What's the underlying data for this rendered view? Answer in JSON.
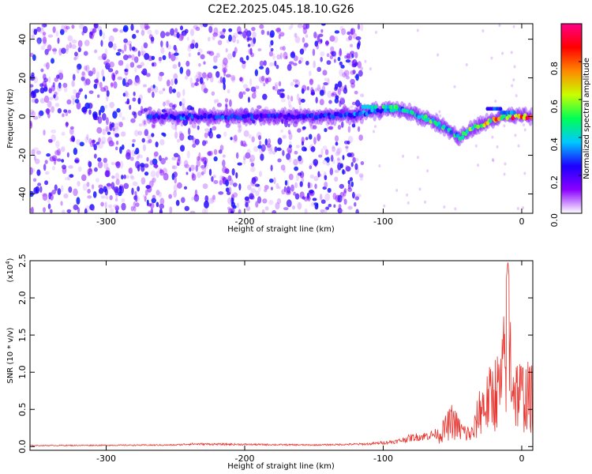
{
  "title": "C2E2.2025.045.18.10.G26",
  "colors": {
    "snr_line": "#e8352f",
    "cbar_stops": [
      "#ffffff",
      "#8a00ff",
      "#1c00ff",
      "#00c8ff",
      "#00ff55",
      "#c8ff00",
      "#ff8800",
      "#ff0000",
      "#ff0088"
    ]
  },
  "chart_data": [
    {
      "type": "heatmap",
      "xlabel": "Height of straight line (km)",
      "ylabel": "Frequency (Hz)",
      "xlim": [
        -355,
        8
      ],
      "ylim": [
        -50,
        48
      ],
      "x_ticks": [
        -300,
        -200,
        -100,
        0
      ],
      "x_tick_labels": [
        "-300",
        "-200",
        "-100",
        "0"
      ],
      "y_ticks": [
        -40,
        -20,
        0,
        20,
        40
      ],
      "y_tick_labels": [
        "-40",
        "-20",
        "0",
        "20",
        "40"
      ],
      "colorbar": {
        "label": "Normalized spectral amplitude",
        "range": [
          0,
          1
        ],
        "ticks": [
          0.0,
          0.2,
          0.4,
          0.6,
          0.8
        ],
        "tick_labels": [
          "0.0",
          "0.2",
          "0.4",
          "0.6",
          "0.8"
        ]
      },
      "ridge": {
        "points": [
          {
            "x": -270,
            "freq": 0,
            "amp": 0.3
          },
          {
            "x": -245,
            "freq": 0,
            "amp": 0.35
          },
          {
            "x": -230,
            "freq": 0,
            "amp": 0.35
          },
          {
            "x": -200,
            "freq": 0,
            "amp": 0.3
          },
          {
            "x": -175,
            "freq": 0,
            "amp": 0.3
          },
          {
            "x": -150,
            "freq": 0,
            "amp": 0.3
          },
          {
            "x": -120,
            "freq": 1,
            "amp": 0.35
          },
          {
            "x": -105,
            "freq": 3,
            "amp": 0.4
          },
          {
            "x": -90,
            "freq": 4,
            "amp": 0.45
          },
          {
            "x": -80,
            "freq": 2,
            "amp": 0.5
          },
          {
            "x": -65,
            "freq": -2,
            "amp": 0.55
          },
          {
            "x": -55,
            "freq": -6,
            "amp": 0.55
          },
          {
            "x": -45,
            "freq": -11,
            "amp": 0.5
          },
          {
            "x": -35,
            "freq": -6,
            "amp": 0.6
          },
          {
            "x": -25,
            "freq": -3,
            "amp": 0.75
          },
          {
            "x": -15,
            "freq": 0,
            "amp": 0.85
          },
          {
            "x": -5,
            "freq": 0,
            "amp": 0.95
          },
          {
            "x": 8,
            "freq": 0,
            "amp": 1.0
          }
        ],
        "secondary": [
          {
            "x": -110,
            "freq": 5,
            "amp": 0.45
          },
          {
            "x": -95,
            "freq": 5,
            "amp": 0.5
          },
          {
            "x": -20,
            "freq": 4,
            "amp": 0.3
          },
          {
            "x": -10,
            "freq": 2,
            "amp": 0.35
          }
        ]
      },
      "noise_region": {
        "x_min": -355,
        "x_max": -115,
        "amp_max": 0.22
      }
    },
    {
      "type": "line",
      "xlabel": "Height of straight line (km)",
      "ylabel": "SNR (10 * v/v)",
      "y_multiplier": "(x10",
      "y_multiplier_exp": "4",
      "y_multiplier_close": ")",
      "xlim": [
        -355,
        8
      ],
      "ylim": [
        -0.05,
        2.5
      ],
      "x_ticks": [
        -300,
        -200,
        -100,
        0
      ],
      "x_tick_labels": [
        "-300",
        "-200",
        "-100",
        "0"
      ],
      "y_ticks": [
        0.0,
        0.5,
        1.0,
        1.5,
        2.0,
        2.5
      ],
      "y_tick_labels": [
        "0.0",
        "0.5",
        "1.0",
        "1.5",
        "2.0",
        "2.5"
      ],
      "series": [
        {
          "envelope": [
            {
              "x": -355,
              "y": 0.02
            },
            {
              "x": -250,
              "y": 0.03
            },
            {
              "x": -240,
              "y": 0.05
            },
            {
              "x": -150,
              "y": 0.03
            },
            {
              "x": -110,
              "y": 0.05
            },
            {
              "x": -90,
              "y": 0.1
            },
            {
              "x": -80,
              "y": 0.17
            },
            {
              "x": -70,
              "y": 0.2
            },
            {
              "x": -60,
              "y": 0.25
            },
            {
              "x": -50,
              "y": 0.6
            },
            {
              "x": -45,
              "y": 0.4
            },
            {
              "x": -40,
              "y": 0.3
            },
            {
              "x": -35,
              "y": 0.3
            },
            {
              "x": -30,
              "y": 0.9
            },
            {
              "x": -25,
              "y": 1.0
            },
            {
              "x": -20,
              "y": 1.25
            },
            {
              "x": -15,
              "y": 1.35
            },
            {
              "x": -10,
              "y": 2.5
            },
            {
              "x": -5,
              "y": 1.3
            },
            {
              "x": 0,
              "y": 1.2
            },
            {
              "x": 5,
              "y": 1.15
            },
            {
              "x": 8,
              "y": 1.1
            }
          ]
        }
      ]
    }
  ]
}
